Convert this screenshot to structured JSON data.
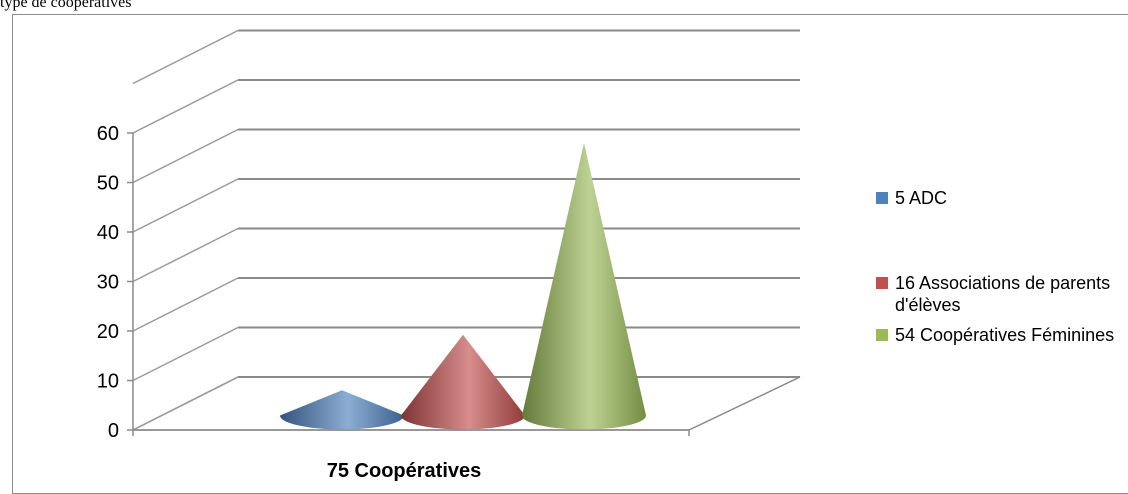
{
  "header": {
    "top_text": "type de coopératives"
  },
  "chart_data": {
    "type": "bar",
    "categories": [
      "75 Coopératives"
    ],
    "xlabel": "75 Coopératives",
    "ylim": [
      0,
      60
    ],
    "yticks": [
      "0",
      "10",
      "20",
      "30",
      "40",
      "50",
      "60"
    ],
    "grid": true,
    "legend_position": "right",
    "series": [
      {
        "name": "5 ADC",
        "values": [
          5
        ],
        "color": "#4F81BD"
      },
      {
        "name": "16 Associations de parents d'élèves",
        "values": [
          16
        ],
        "color": "#C0504D"
      },
      {
        "name": "54 Coopératives Féminines",
        "values": [
          54
        ],
        "color": "#9BBB59"
      }
    ]
  }
}
